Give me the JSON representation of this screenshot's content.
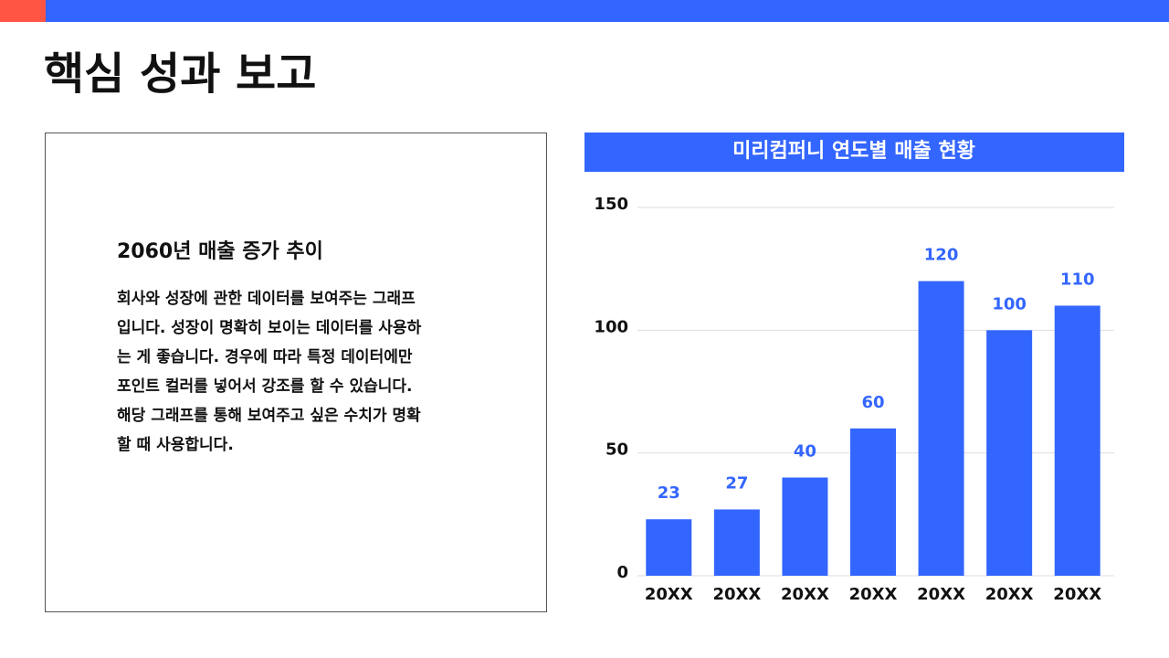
{
  "title": "핵심 성과 보고",
  "text_box": {
    "heading": "2060년 매출 증가 추이",
    "body_lines": [
      "회사와 성장에 관한 데이터를 보여주는 그래프",
      "입니다. 성장이 명확히 보이는 데이터를 사용하",
      "는 게 좋습니다. 경우에 따라 특정 데이터에만",
      "포인트 컬러를 넣어서 강조를 할 수 있습니다.",
      "해당 그래프를 통해 보여주고 싶은 수치가 명확",
      "할 때 사용합니다."
    ]
  },
  "chart_data": {
    "type": "bar",
    "title": "미리컴퍼니 연도별 매출 현황",
    "categories": [
      "20XX",
      "20XX",
      "20XX",
      "20XX",
      "20XX",
      "20XX",
      "20XX"
    ],
    "values": [
      23,
      27,
      40,
      60,
      120,
      100,
      110
    ],
    "color": "#3366ff",
    "ylim": [
      0,
      150
    ],
    "yticks": [
      0,
      50,
      100,
      150
    ],
    "grid": true
  }
}
